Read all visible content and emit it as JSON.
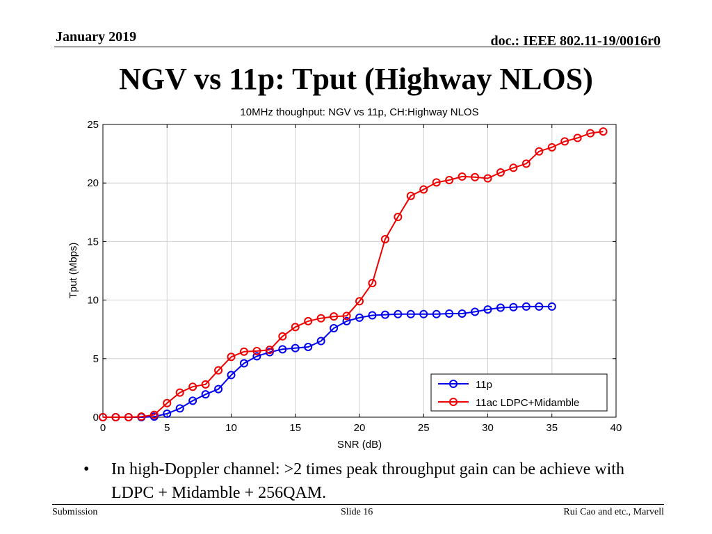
{
  "header": {
    "date": "January 2019",
    "doc": "doc.: IEEE 802.11-19/0016r0"
  },
  "slide_title": "NGV vs 11p: Tput (Highway NLOS)",
  "bullet": {
    "symbol": "•",
    "text": "In high-Doppler channel: >2 times peak throughput gain can be achieve with LDPC + Midamble + 256QAM."
  },
  "footer": {
    "left": "Submission",
    "center": "Slide 16",
    "right": "Rui Cao and etc., Marvell"
  },
  "chart_data": {
    "type": "line",
    "title": "10MHz thoughput: NGV vs 11p, CH:Highway NLOS",
    "xlabel": "SNR (dB)",
    "ylabel": "Tput (Mbps)",
    "xlim": [
      0,
      40
    ],
    "ylim": [
      0,
      25
    ],
    "xticks": [
      0,
      5,
      10,
      15,
      20,
      25,
      30,
      35,
      40
    ],
    "yticks": [
      0,
      5,
      10,
      15,
      20,
      25
    ],
    "grid": true,
    "legend_position": "bottom-right",
    "series": [
      {
        "name": "11p",
        "color": "#0000ee",
        "marker": "circle",
        "x": [
          0,
          1,
          2,
          3,
          4,
          5,
          6,
          7,
          8,
          9,
          10,
          11,
          12,
          13,
          14,
          15,
          16,
          17,
          18,
          19,
          20,
          21,
          22,
          23,
          24,
          25,
          26,
          27,
          28,
          29,
          30,
          31,
          32,
          33,
          34,
          35
        ],
        "y": [
          0,
          0,
          0,
          0,
          0.05,
          0.3,
          0.75,
          1.4,
          1.95,
          2.4,
          3.6,
          4.6,
          5.2,
          5.55,
          5.8,
          5.9,
          6.0,
          6.5,
          7.6,
          8.2,
          8.5,
          8.7,
          8.75,
          8.8,
          8.8,
          8.8,
          8.8,
          8.85,
          8.85,
          9.0,
          9.2,
          9.35,
          9.4,
          9.45,
          9.45,
          9.45
        ]
      },
      {
        "name": "11ac LDPC+Midamble",
        "color": "#ee0000",
        "marker": "circle",
        "x": [
          0,
          1,
          2,
          3,
          4,
          5,
          6,
          7,
          8,
          9,
          10,
          11,
          12,
          13,
          14,
          15,
          16,
          17,
          18,
          19,
          20,
          21,
          22,
          23,
          24,
          25,
          26,
          27,
          28,
          29,
          30,
          31,
          32,
          33,
          34,
          35,
          36,
          37,
          38,
          39
        ],
        "y": [
          0,
          0,
          0,
          0.05,
          0.2,
          1.2,
          2.1,
          2.6,
          2.8,
          4.0,
          5.15,
          5.6,
          5.65,
          5.75,
          6.9,
          7.7,
          8.2,
          8.45,
          8.6,
          8.65,
          9.9,
          11.45,
          15.2,
          17.1,
          18.9,
          19.45,
          20.05,
          20.25,
          20.55,
          20.5,
          20.4,
          20.9,
          21.3,
          21.65,
          22.7,
          23.05,
          23.55,
          23.85,
          24.25,
          24.4
        ]
      }
    ]
  }
}
